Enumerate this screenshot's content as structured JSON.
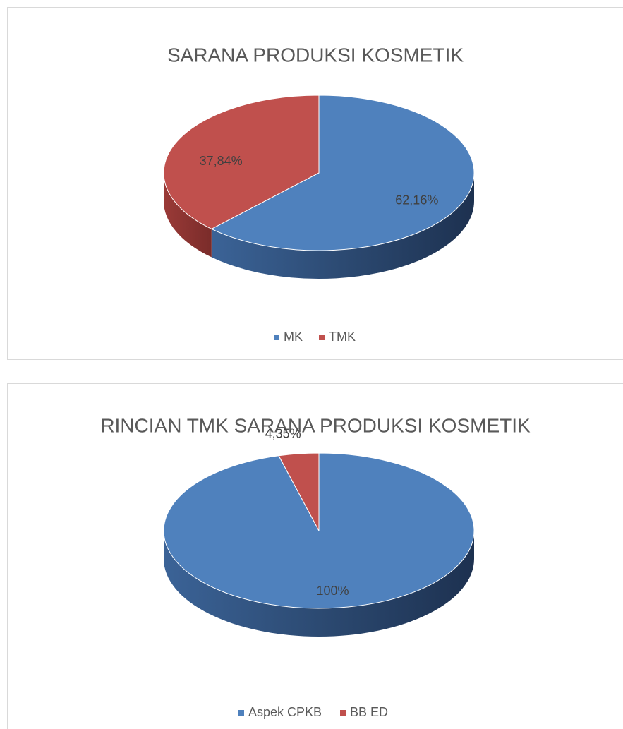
{
  "chart_data": [
    {
      "type": "pie",
      "title": "SARANA PRODUKSI KOSMETIK",
      "categories": [
        "MK",
        "TMK"
      ],
      "values": [
        62.16,
        37.84
      ],
      "value_labels": [
        "62,16%",
        "37,84%"
      ],
      "colors": [
        "#4f81bd",
        "#c0504d"
      ],
      "legend": "bottom"
    },
    {
      "type": "pie",
      "title": "RINCIAN TMK SARANA PRODUKSI KOSMETIK",
      "categories": [
        "Aspek CPKB",
        "BB ED"
      ],
      "values": [
        100,
        4.35
      ],
      "value_labels": [
        "100%",
        "4,35%"
      ],
      "colors": [
        "#4f81bd",
        "#c0504d"
      ],
      "legend": "bottom"
    }
  ]
}
